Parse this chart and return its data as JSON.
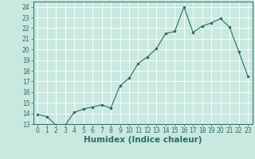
{
  "x": [
    0,
    1,
    2,
    3,
    4,
    5,
    6,
    7,
    8,
    9,
    10,
    11,
    12,
    13,
    14,
    15,
    16,
    17,
    18,
    19,
    20,
    21,
    22,
    23
  ],
  "y": [
    13.9,
    13.7,
    12.9,
    12.9,
    14.1,
    14.4,
    14.6,
    14.8,
    14.5,
    16.6,
    17.3,
    18.7,
    19.3,
    20.1,
    21.5,
    21.7,
    24.0,
    21.6,
    22.2,
    22.5,
    22.9,
    22.1,
    19.8,
    17.5
  ],
  "xlabel": "Humidex (Indice chaleur)",
  "ylim": [
    13,
    24.5
  ],
  "xlim": [
    -0.5,
    23.5
  ],
  "yticks": [
    13,
    14,
    15,
    16,
    17,
    18,
    19,
    20,
    21,
    22,
    23,
    24
  ],
  "xticks": [
    0,
    1,
    2,
    3,
    4,
    5,
    6,
    7,
    8,
    9,
    10,
    11,
    12,
    13,
    14,
    15,
    16,
    17,
    18,
    19,
    20,
    21,
    22,
    23
  ],
  "line_color": "#2d6e5e",
  "marker_size": 2.5,
  "bg_color": "#c8e8e0",
  "grid_color": "#ffffff",
  "tick_label_fontsize": 5.5,
  "xlabel_fontsize": 7.5
}
